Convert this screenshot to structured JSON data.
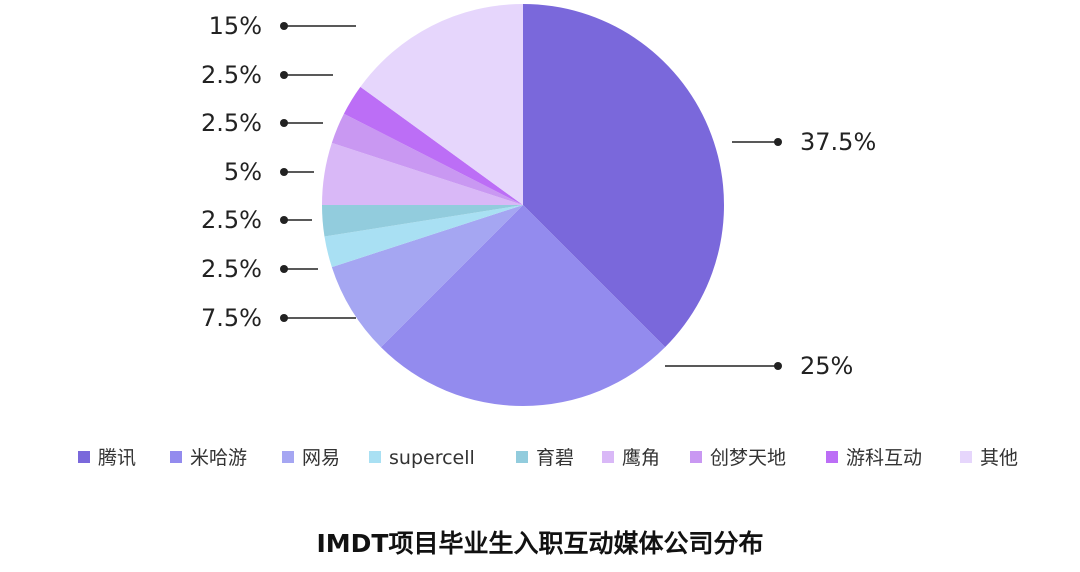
{
  "chart_data": {
    "type": "pie",
    "title": "IMDT项目毕业生入职互动媒体公司分布",
    "legend_position": "bottom",
    "slices": [
      {
        "name": "腾讯",
        "value": 37.5,
        "label": "37.5%",
        "color": "#7A68DB"
      },
      {
        "name": "米哈游",
        "value": 25,
        "label": "25%",
        "color": "#938BEE"
      },
      {
        "name": "网易",
        "value": 7.5,
        "label": "7.5%",
        "color": "#A5A6F2"
      },
      {
        "name": "supercell",
        "value": 2.5,
        "label": "2.5%",
        "color": "#A9E0F3"
      },
      {
        "name": "育碧",
        "value": 2.5,
        "label": "2.5%",
        "color": "#92CCDD"
      },
      {
        "name": "鹰角",
        "value": 5,
        "label": "5%",
        "color": "#D9B8F7"
      },
      {
        "name": "创梦天地",
        "value": 2.5,
        "label": "2.5%",
        "color": "#C998F2"
      },
      {
        "name": "游科互动",
        "value": 2.5,
        "label": "2.5%",
        "color": "#BC6EF6"
      },
      {
        "name": "其他",
        "value": 15,
        "label": "15%",
        "color": "#E6D6FC"
      }
    ]
  }
}
